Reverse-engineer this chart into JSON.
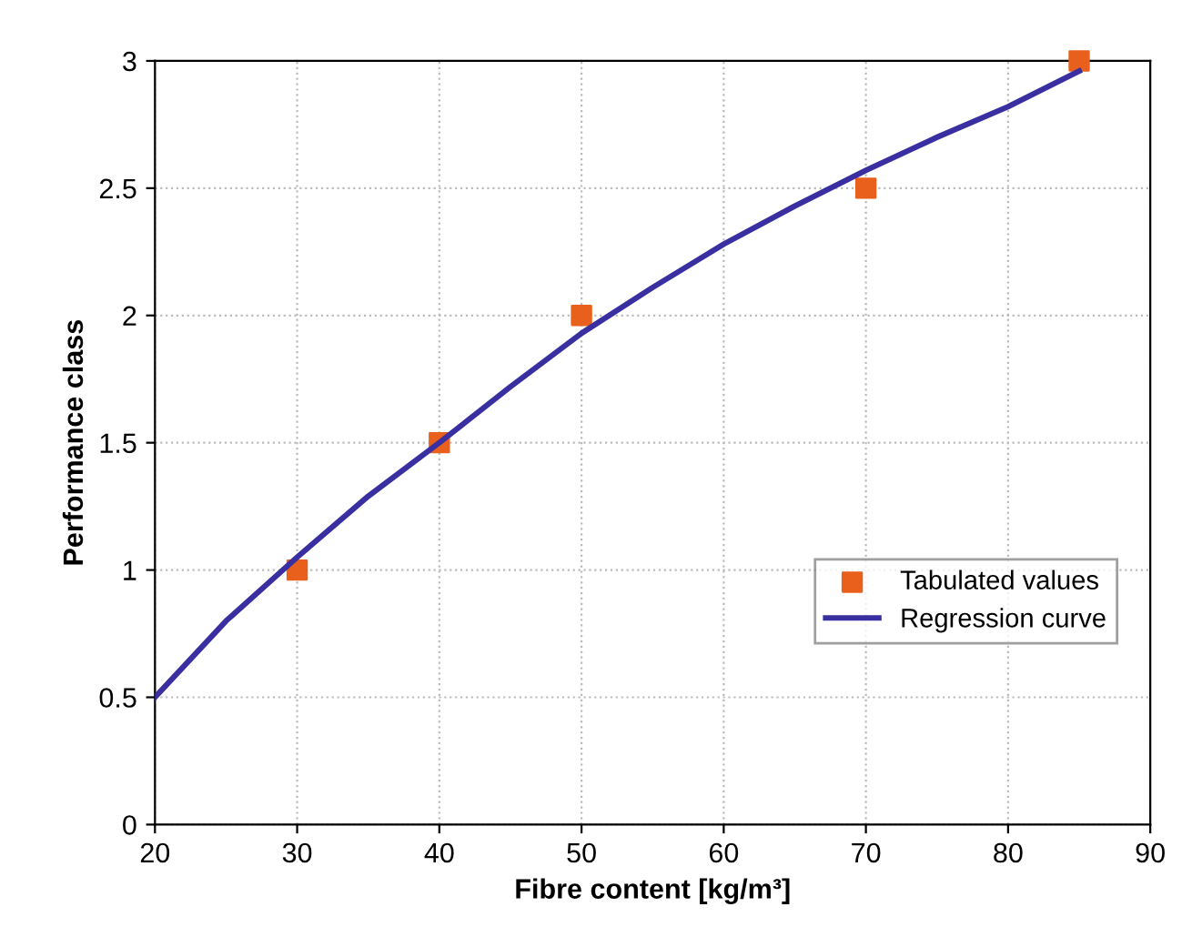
{
  "chart_data": {
    "type": "scatter",
    "xlabel": "Fibre content [kg/m³]",
    "ylabel": "Performance class",
    "series": [
      {
        "name": "Tabulated values",
        "color": "#e8601c",
        "marker": "square",
        "x": [
          30,
          40,
          50,
          70,
          85
        ],
        "values": [
          1,
          1.5,
          2,
          2.5,
          3
        ]
      },
      {
        "name": "Regression curve",
        "type": "line",
        "color": "#3a2fa0",
        "marker": "none",
        "x": [
          20,
          25,
          30,
          35,
          40,
          45,
          50,
          55,
          60,
          65,
          70,
          75,
          80,
          85
        ],
        "values": [
          0.5,
          0.8,
          1.05,
          1.29,
          1.5,
          1.72,
          1.93,
          2.11,
          2.28,
          2.43,
          2.57,
          2.7,
          2.82,
          2.96
        ]
      }
    ],
    "xlim": [
      20,
      90
    ],
    "xticks": [
      20,
      30,
      40,
      50,
      60,
      70,
      80,
      90
    ],
    "ylim": [
      0,
      3
    ],
    "yticks": [
      0,
      0.5,
      1,
      1.5,
      2,
      2.5,
      3
    ],
    "grid": true,
    "legend": "bottom right"
  }
}
